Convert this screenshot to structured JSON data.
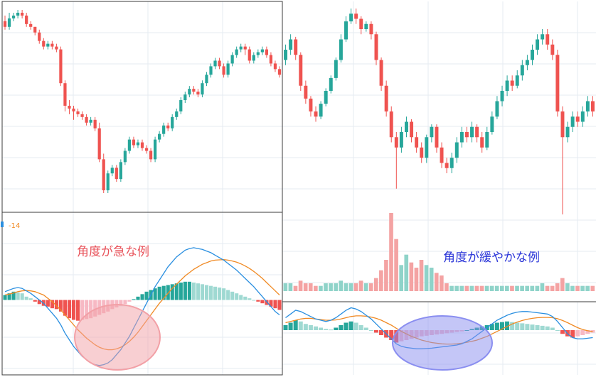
{
  "annotations": {
    "left": "角度が急な例",
    "right": "角度が緩やかな例",
    "left_color": "#e8525a",
    "right_color": "#2a35d8"
  },
  "left_panel_value_label": "-14",
  "colors": {
    "up": "#26a69a",
    "down": "#ef5350",
    "hist_up_strong": "#26a69a",
    "hist_up_weak": "#9fd9d2",
    "hist_down_strong": "#ef5350",
    "hist_down_weak": "#f7b9c4",
    "macd": "#2a8fe0",
    "signal": "#f08a24",
    "volume_up": "#8fd3c9",
    "volume_down": "#f4a3a3",
    "left_ellipse": "#f2a0a6",
    "right_ellipse": "#8a8ef0"
  },
  "chart_data": [
    {
      "type": "candlestick",
      "panel": "left-price",
      "candles": [
        [
          94,
          92,
          96,
          91
        ],
        [
          92,
          95,
          97,
          91
        ],
        [
          95,
          96,
          97,
          94
        ],
        [
          96,
          97,
          98,
          95
        ],
        [
          97,
          96,
          98,
          95
        ],
        [
          96,
          93,
          97,
          92
        ],
        [
          93,
          92,
          94,
          91
        ],
        [
          92,
          90,
          92,
          89
        ],
        [
          90,
          87,
          91,
          86
        ],
        [
          87,
          85,
          88,
          84
        ],
        [
          85,
          86,
          87,
          84
        ],
        [
          86,
          85,
          87,
          84
        ],
        [
          85,
          84,
          86,
          83
        ],
        [
          84,
          72,
          85,
          71
        ],
        [
          72,
          64,
          73,
          62
        ],
        [
          64,
          63,
          66,
          61
        ],
        [
          63,
          62,
          64,
          59
        ],
        [
          62,
          61,
          63,
          60
        ],
        [
          61,
          60,
          62,
          59
        ],
        [
          60,
          58,
          61,
          57
        ],
        [
          58,
          59,
          60,
          57
        ],
        [
          59,
          56,
          60,
          55
        ],
        [
          56,
          45,
          58,
          44
        ],
        [
          45,
          34,
          47,
          33
        ],
        [
          34,
          40,
          41,
          33
        ],
        [
          40,
          42,
          43,
          39
        ],
        [
          42,
          38,
          43,
          37
        ],
        [
          38,
          44,
          45,
          37
        ],
        [
          44,
          48,
          49,
          43
        ],
        [
          48,
          52,
          53,
          47
        ],
        [
          52,
          50,
          53,
          49
        ],
        [
          50,
          51,
          52,
          49
        ],
        [
          51,
          49,
          52,
          48
        ],
        [
          49,
          48,
          50,
          47
        ],
        [
          48,
          45,
          49,
          44
        ],
        [
          45,
          52,
          53,
          44
        ],
        [
          52,
          54,
          55,
          51
        ],
        [
          54,
          57,
          58,
          53
        ],
        [
          57,
          56,
          58,
          55
        ],
        [
          56,
          60,
          61,
          55
        ],
        [
          60,
          62,
          63,
          59
        ],
        [
          62,
          66,
          67,
          61
        ],
        [
          66,
          68,
          69,
          65
        ],
        [
          68,
          70,
          71,
          67
        ],
        [
          70,
          69,
          71,
          68
        ],
        [
          69,
          68,
          70,
          67
        ],
        [
          68,
          72,
          73,
          67
        ],
        [
          72,
          75,
          76,
          71
        ],
        [
          75,
          78,
          79,
          74
        ],
        [
          78,
          80,
          81,
          77
        ],
        [
          80,
          78,
          81,
          77
        ],
        [
          78,
          75,
          79,
          74
        ],
        [
          75,
          79,
          80,
          74
        ],
        [
          79,
          82,
          83,
          78
        ],
        [
          82,
          84,
          85,
          81
        ],
        [
          84,
          85,
          86,
          83
        ],
        [
          85,
          84,
          86,
          82
        ],
        [
          84,
          80,
          85,
          79
        ],
        [
          80,
          82,
          83,
          79
        ],
        [
          82,
          83,
          84,
          81
        ],
        [
          83,
          84,
          85,
          82
        ],
        [
          84,
          82,
          85,
          81
        ],
        [
          82,
          79,
          83,
          78
        ],
        [
          79,
          77,
          80,
          76
        ],
        [
          77,
          75,
          78,
          74
        ]
      ]
    },
    {
      "type": "macd",
      "panel": "left-macd",
      "histogram": [
        0.3,
        0.4,
        0.5,
        0.45,
        0.4,
        0.2,
        0.1,
        -0.1,
        -0.25,
        -0.35,
        -0.4,
        -0.5,
        -0.55,
        -0.7,
        -0.95,
        -1.1,
        -1.2,
        -1.25,
        -1.2,
        -1.15,
        -1.1,
        -1.0,
        -0.9,
        -0.8,
        -0.7,
        -0.55,
        -0.45,
        -0.35,
        -0.25,
        -0.1,
        0.05,
        0.2,
        0.35,
        0.5,
        0.6,
        0.7,
        0.8,
        0.85,
        0.9,
        0.95,
        1.0,
        1.05,
        1.1,
        1.1,
        1.05,
        1.0,
        0.95,
        0.9,
        0.85,
        0.8,
        0.75,
        0.7,
        0.6,
        0.5,
        0.4,
        0.3,
        0.2,
        0.1,
        0.0,
        -0.1,
        -0.2,
        -0.3,
        -0.4,
        -0.5,
        -0.6
      ],
      "macd": [
        0.5,
        0.6,
        0.7,
        0.75,
        0.7,
        0.55,
        0.4,
        0.2,
        0.0,
        -0.2,
        -0.5,
        -0.8,
        -1.1,
        -1.5,
        -2.0,
        -2.4,
        -2.8,
        -3.1,
        -3.4,
        -3.6,
        -3.8,
        -3.9,
        -3.95,
        -3.9,
        -3.8,
        -3.6,
        -3.3,
        -3.0,
        -2.6,
        -2.2,
        -1.7,
        -1.2,
        -0.7,
        -0.2,
        0.3,
        0.8,
        1.2,
        1.6,
        2.0,
        2.3,
        2.6,
        2.8,
        3.0,
        3.1,
        3.15,
        3.1,
        3.05,
        2.95,
        2.85,
        2.7,
        2.55,
        2.4,
        2.2,
        2.0,
        1.8,
        1.55,
        1.3,
        1.05,
        0.8,
        0.5,
        0.2,
        -0.1,
        -0.4,
        -0.7,
        -0.9
      ],
      "signal": [
        0.3,
        0.35,
        0.42,
        0.5,
        0.55,
        0.57,
        0.55,
        0.5,
        0.4,
        0.3,
        0.1,
        -0.1,
        -0.35,
        -0.6,
        -0.9,
        -1.2,
        -1.5,
        -1.8,
        -2.05,
        -2.3,
        -2.5,
        -2.7,
        -2.85,
        -2.95,
        -3.0,
        -3.0,
        -2.95,
        -2.85,
        -2.7,
        -2.5,
        -2.25,
        -1.95,
        -1.6,
        -1.25,
        -0.9,
        -0.55,
        -0.2,
        0.1,
        0.4,
        0.7,
        0.95,
        1.2,
        1.45,
        1.65,
        1.85,
        2.0,
        2.15,
        2.25,
        2.35,
        2.4,
        2.42,
        2.43,
        2.4,
        2.35,
        2.28,
        2.18,
        2.05,
        1.9,
        1.72,
        1.52,
        1.3,
        1.05,
        0.8,
        0.55,
        0.3
      ]
    },
    {
      "type": "candlestick",
      "panel": "right-price",
      "candles": [
        [
          70,
          74,
          76,
          68
        ],
        [
          74,
          78,
          80,
          72
        ],
        [
          78,
          72,
          79,
          70
        ],
        [
          72,
          60,
          73,
          58
        ],
        [
          60,
          55,
          62,
          53
        ],
        [
          55,
          50,
          56,
          48
        ],
        [
          50,
          48,
          52,
          46
        ],
        [
          48,
          53,
          54,
          47
        ],
        [
          53,
          58,
          59,
          52
        ],
        [
          58,
          63,
          64,
          57
        ],
        [
          63,
          70,
          71,
          62
        ],
        [
          70,
          78,
          80,
          69
        ],
        [
          78,
          85,
          87,
          77
        ],
        [
          85,
          88,
          90,
          84
        ],
        [
          88,
          86,
          90,
          84
        ],
        [
          86,
          82,
          87,
          80
        ],
        [
          82,
          84,
          85,
          81
        ],
        [
          84,
          80,
          85,
          78
        ],
        [
          80,
          70,
          81,
          68
        ],
        [
          70,
          60,
          71,
          58
        ],
        [
          60,
          50,
          62,
          48
        ],
        [
          50,
          40,
          52,
          38
        ],
        [
          40,
          36,
          42,
          20
        ],
        [
          36,
          42,
          44,
          34
        ],
        [
          42,
          46,
          48,
          40
        ],
        [
          46,
          40,
          47,
          38
        ],
        [
          40,
          36,
          42,
          34
        ],
        [
          36,
          32,
          38,
          30
        ],
        [
          32,
          40,
          41,
          30
        ],
        [
          40,
          44,
          45,
          38
        ],
        [
          44,
          36,
          45,
          34
        ],
        [
          36,
          30,
          38,
          28
        ],
        [
          30,
          28,
          32,
          26
        ],
        [
          28,
          32,
          34,
          26
        ],
        [
          32,
          38,
          40,
          30
        ],
        [
          38,
          42,
          44,
          36
        ],
        [
          42,
          40,
          44,
          38
        ],
        [
          40,
          44,
          46,
          38
        ],
        [
          44,
          40,
          45,
          38
        ],
        [
          40,
          36,
          42,
          34
        ],
        [
          36,
          42,
          44,
          35
        ],
        [
          42,
          48,
          50,
          41
        ],
        [
          48,
          54,
          56,
          47
        ],
        [
          54,
          58,
          60,
          52
        ],
        [
          58,
          62,
          64,
          56
        ],
        [
          62,
          60,
          64,
          58
        ],
        [
          60,
          64,
          66,
          59
        ],
        [
          64,
          68,
          70,
          62
        ],
        [
          68,
          70,
          72,
          66
        ],
        [
          70,
          74,
          76,
          68
        ],
        [
          74,
          78,
          80,
          72
        ],
        [
          78,
          80,
          82,
          76
        ],
        [
          80,
          76,
          82,
          74
        ],
        [
          76,
          72,
          78,
          70
        ],
        [
          72,
          50,
          74,
          48
        ],
        [
          50,
          40,
          52,
          10
        ],
        [
          40,
          44,
          46,
          38
        ],
        [
          44,
          48,
          50,
          42
        ],
        [
          48,
          46,
          50,
          44
        ],
        [
          46,
          50,
          52,
          44
        ],
        [
          50,
          54,
          56,
          48
        ],
        [
          54,
          50,
          56,
          48
        ]
      ],
      "volume": [
        3,
        3,
        2,
        4,
        3,
        3,
        2,
        2,
        3,
        3,
        3,
        4,
        3,
        3,
        3,
        4,
        3,
        3,
        5,
        8,
        12,
        30,
        20,
        10,
        14,
        11,
        9,
        12,
        10,
        9,
        7,
        6,
        3,
        2,
        2,
        2,
        2,
        2,
        2,
        2,
        2,
        2,
        2,
        2,
        2,
        2,
        2,
        2,
        2,
        2,
        2,
        3,
        2,
        2,
        3,
        5,
        3,
        2,
        2,
        2,
        2,
        2
      ]
    },
    {
      "type": "macd",
      "panel": "right-macd",
      "histogram": [
        0.4,
        0.6,
        0.8,
        0.7,
        0.5,
        0.4,
        0.3,
        0.2,
        0.1,
        0.05,
        0.2,
        0.4,
        0.6,
        0.7,
        0.6,
        0.4,
        0.2,
        0.0,
        -0.2,
        -0.4,
        -0.6,
        -0.8,
        -1.0,
        -0.9,
        -0.8,
        -0.7,
        -0.6,
        -0.5,
        -0.45,
        -0.4,
        -0.35,
        -0.3,
        -0.25,
        -0.2,
        -0.15,
        -0.1,
        0.0,
        0.1,
        0.2,
        0.3,
        0.4,
        0.5,
        0.6,
        0.65,
        0.7,
        0.65,
        0.6,
        0.55,
        0.5,
        0.45,
        0.4,
        0.35,
        0.3,
        0.2,
        0.0,
        -0.3,
        -0.5,
        -0.6,
        -0.5,
        -0.4,
        -0.3,
        -0.2
      ],
      "macd": [
        1.0,
        1.3,
        1.6,
        1.5,
        1.3,
        1.1,
        0.9,
        0.8,
        0.7,
        0.8,
        1.0,
        1.3,
        1.6,
        1.8,
        1.7,
        1.5,
        1.2,
        0.9,
        0.5,
        0.1,
        -0.3,
        -0.7,
        -1.1,
        -1.3,
        -1.4,
        -1.45,
        -1.5,
        -1.5,
        -1.48,
        -1.45,
        -1.4,
        -1.35,
        -1.3,
        -1.25,
        -1.2,
        -1.1,
        -0.9,
        -0.7,
        -0.4,
        -0.1,
        0.2,
        0.5,
        0.8,
        1.0,
        1.2,
        1.35,
        1.45,
        1.5,
        1.5,
        1.45,
        1.4,
        1.35,
        1.3,
        1.1,
        0.7,
        0.2,
        -0.3,
        -0.6,
        -0.7,
        -0.7,
        -0.65,
        -0.6
      ],
      "signal": [
        0.6,
        0.7,
        0.8,
        0.9,
        0.95,
        0.95,
        0.9,
        0.85,
        0.8,
        0.8,
        0.82,
        0.9,
        1.0,
        1.1,
        1.15,
        1.15,
        1.12,
        1.05,
        0.95,
        0.8,
        0.6,
        0.4,
        0.15,
        -0.1,
        -0.3,
        -0.5,
        -0.65,
        -0.8,
        -0.9,
        -1.0,
        -1.05,
        -1.1,
        -1.12,
        -1.12,
        -1.1,
        -1.05,
        -0.98,
        -0.9,
        -0.8,
        -0.65,
        -0.5,
        -0.3,
        -0.1,
        0.1,
        0.3,
        0.5,
        0.65,
        0.78,
        0.88,
        0.95,
        1.0,
        1.02,
        1.02,
        1.0,
        0.92,
        0.78,
        0.6,
        0.4,
        0.2,
        0.05,
        -0.05,
        -0.12
      ]
    }
  ]
}
